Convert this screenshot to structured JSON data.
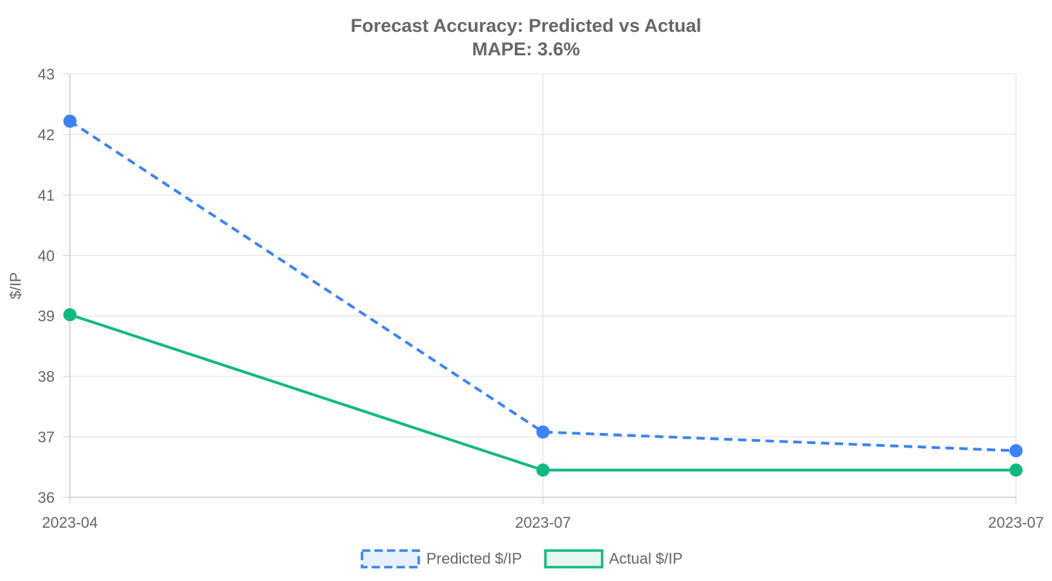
{
  "chart_data": {
    "type": "line",
    "title": "Forecast Accuracy: Predicted vs Actual",
    "subtitle": "MAPE: 3.6%",
    "xlabel": "",
    "ylabel": "$/IP",
    "categories": [
      "2023-04",
      "2023-07",
      "2023-07"
    ],
    "ylim": [
      36,
      43
    ],
    "yticks": [
      "36",
      "37",
      "38",
      "39",
      "40",
      "41",
      "42",
      "43"
    ],
    "grid": true,
    "legend_position": "bottom",
    "series": [
      {
        "name": "Predicted $/IP",
        "values": [
          42.22,
          37.08,
          36.77
        ],
        "color": "#3b82f6",
        "fill": "#e8f0fe",
        "dash": true
      },
      {
        "name": "Actual $/IP",
        "values": [
          39.02,
          36.45,
          36.45
        ],
        "color": "#10b981",
        "fill": "#e6f7f1",
        "dash": false
      }
    ]
  }
}
